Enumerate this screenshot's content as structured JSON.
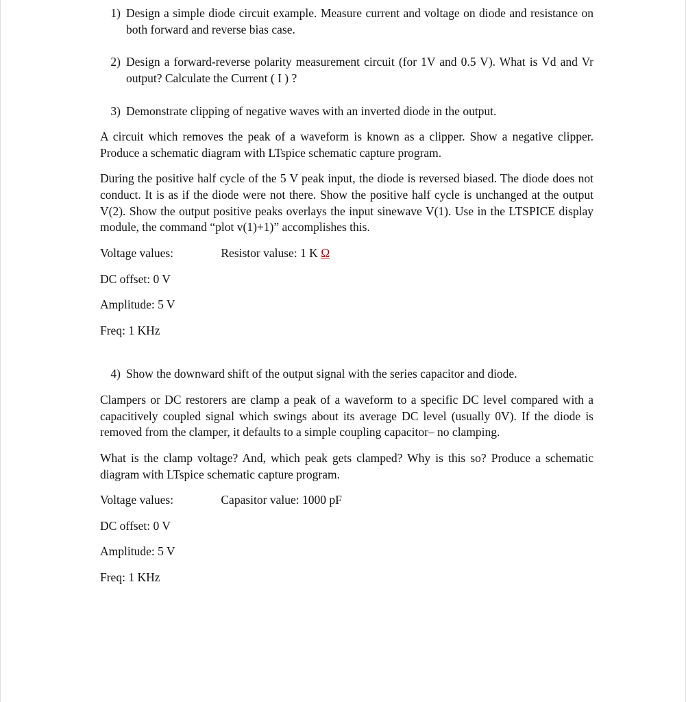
{
  "q1": {
    "num": "1)",
    "text": "Design a simple diode circuit example. Measure current and voltage on diode and resistance on both forward and reverse bias case."
  },
  "q2": {
    "num": "2)",
    "text": "Design a forward-reverse polarity measurement circuit (for 1V and 0.5 V). What is Vd and Vr output? Calculate the Current ( I ) ?"
  },
  "q3": {
    "num": "3)",
    "text": "Demonstrate clipping of negative waves with an inverted diode in the output.",
    "p1": "A circuit which removes the peak of a waveform is known as a clipper. Show a negative clipper. Produce a schematic diagram with LTspice schematic capture program.",
    "p2": "During the positive half cycle of the 5 V peak input, the diode is reversed biased. The diode does not conduct. It is as if the diode were not there. Show the positive half cycle is unchanged at the output V(2). Show the output positive peaks overlays the input sinewave V(1). Use in the LTSPICE display module, the command “plot v(1)+1)” accomplishes this.",
    "voltage_label": "Voltage values:",
    "resistor_prefix": "Resistor valuse: 1 K ",
    "resistor_ohm": "Ω",
    "dc": "DC offset: 0 V",
    "amp": "Amplitude: 5 V",
    "freq": "Freq: 1 KHz"
  },
  "q4": {
    "num": "4)",
    "text": "Show the downward shift of the output signal with the series capacitor and diode.",
    "p1": "Clampers or DC restorers are clamp a peak of a waveform to a specific DC level compared with a capacitively coupled signal which swings about its average DC level (usually 0V). If the diode is removed from the clamper, it defaults to a simple coupling capacitor– no clamping.",
    "p2": "What is the clamp voltage? And, which peak gets clamped? Why is this so? Produce a schematic diagram with LTspice schematic capture program.",
    "voltage_label": "Voltage values:",
    "capacitor": "Capasitor value: 1000 pF",
    "dc": "DC offset: 0 V",
    "amp": "Amplitude: 5 V",
    "freq": "Freq: 1 KHz"
  }
}
